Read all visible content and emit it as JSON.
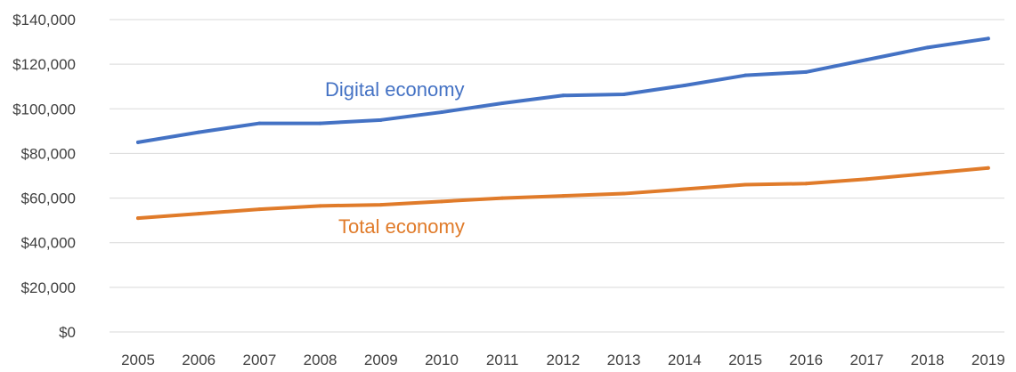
{
  "chart_data": {
    "type": "line",
    "title": "",
    "xlabel": "",
    "ylabel": "",
    "x": [
      "2005",
      "2006",
      "2007",
      "2008",
      "2009",
      "2010",
      "2011",
      "2012",
      "2013",
      "2014",
      "2015",
      "2016",
      "2017",
      "2018",
      "2019"
    ],
    "ylim": [
      0,
      140000
    ],
    "y_ticks": [
      0,
      20000,
      40000,
      60000,
      80000,
      100000,
      120000,
      140000
    ],
    "y_tick_labels": [
      "$0",
      "$20,000",
      "$40,000",
      "$60,000",
      "$80,000",
      "$100,000",
      "$120,000",
      "$140,000"
    ],
    "grid": true,
    "legend": "none",
    "series": [
      {
        "name": "Digital economy",
        "color": "#4472c4",
        "values": [
          85000,
          89500,
          93500,
          93500,
          95000,
          98500,
          102500,
          106000,
          106500,
          110500,
          115000,
          116500,
          122000,
          127500,
          131500
        ]
      },
      {
        "name": "Total economy",
        "color": "#e07b2a",
        "values": [
          51000,
          53000,
          55000,
          56500,
          57000,
          58500,
          60000,
          61000,
          62000,
          64000,
          66000,
          66500,
          68500,
          71000,
          73500
        ]
      }
    ]
  }
}
